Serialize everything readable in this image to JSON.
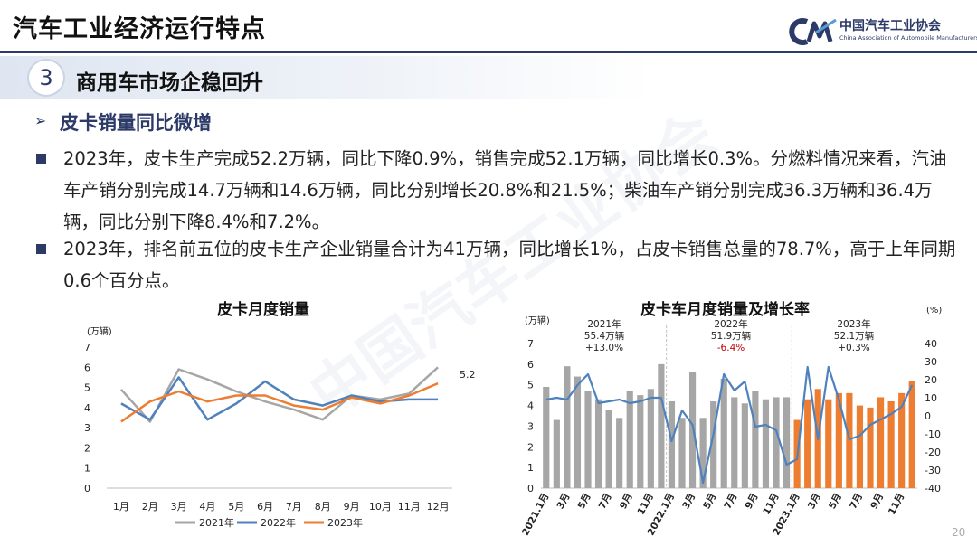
{
  "header": {
    "title": "汽车工业经济运行特点",
    "brand_name": "中国汽车工业协会",
    "brand_en": "China Association of Automobile Manufacturers",
    "watermark": "中国汽车工业协会"
  },
  "section": {
    "number": "3",
    "title": "商用车市场企稳回升"
  },
  "subsection": {
    "arrow": "➢",
    "title": "皮卡销量同比微增"
  },
  "paragraphs": [
    "2023年，皮卡生产完成52.2万辆，同比下降0.9%，销售完成52.1万辆，同比增长0.3%。分燃料情况来看，汽油车产销分别完成14.7万辆和14.6万辆，同比分别增长20.8%和21.5%；柴油车产销分别完成36.3万辆和36.4万辆，同比分别下降8.4%和7.2%。",
    "2023年，排名前五位的皮卡生产企业销量合计为41万辆，同比增长1%，占皮卡销售总量的78.7%，高于上年同期0.6个百分点。"
  ],
  "page_number": "20",
  "colors": {
    "navy": "#2b3a67",
    "gray": "#a6a6a6",
    "blue": "#4f81bd",
    "orange": "#ed7d31"
  },
  "chart_data": [
    {
      "type": "line",
      "title": "皮卡月度销量",
      "ylabel": "(万辆)",
      "ylim": [
        0,
        7
      ],
      "yticks": [
        "0",
        "1",
        "2",
        "3",
        "4",
        "5",
        "6",
        "7"
      ],
      "categories": [
        "1月",
        "2月",
        "3月",
        "4月",
        "5月",
        "6月",
        "7月",
        "8月",
        "9月",
        "10月",
        "11月",
        "12月"
      ],
      "series": [
        {
          "name": "2021年",
          "color": "#a6a6a6",
          "values": [
            4.9,
            3.3,
            5.9,
            5.4,
            4.8,
            4.3,
            3.9,
            3.4,
            4.6,
            4.4,
            4.7,
            6.0
          ]
        },
        {
          "name": "2022年",
          "color": "#4f81bd",
          "values": [
            4.2,
            3.4,
            5.5,
            3.4,
            4.2,
            5.3,
            4.4,
            4.1,
            4.6,
            4.3,
            4.4,
            4.4
          ]
        },
        {
          "name": "2023年",
          "color": "#ed7d31",
          "values": [
            3.3,
            4.3,
            4.8,
            4.3,
            4.6,
            4.6,
            4.1,
            3.9,
            4.5,
            4.2,
            4.6,
            5.2
          ]
        }
      ],
      "end_label": "5.2"
    },
    {
      "type": "bar",
      "title": "皮卡车月度销量及增长率",
      "ylabel_left": "(万辆)",
      "ylabel_right": "(%)",
      "ylim_left": [
        0,
        7
      ],
      "ylim_right": [
        -40,
        40
      ],
      "yticks_left": [
        "0",
        "1",
        "2",
        "3",
        "4",
        "5",
        "6",
        "7"
      ],
      "yticks_right": [
        "-40",
        "-30",
        "-20",
        "-10",
        "0",
        "10",
        "20",
        "30",
        "40"
      ],
      "x_labels": [
        "2021.1月",
        "3月",
        "5月",
        "7月",
        "9月",
        "11月",
        "2022.1月",
        "3月",
        "5月",
        "7月",
        "9月",
        "11月",
        "2023.1月",
        "3月",
        "5月",
        "7月",
        "9月",
        "11月"
      ],
      "bars_2021_2022": [
        4.9,
        3.3,
        5.9,
        5.4,
        4.7,
        4.3,
        3.8,
        3.4,
        4.7,
        4.5,
        4.8,
        6.0,
        4.2,
        3.4,
        5.6,
        3.4,
        4.2,
        5.3,
        4.4,
        4.1,
        4.7,
        4.3,
        4.4,
        4.4
      ],
      "bars_2023": [
        3.3,
        4.3,
        4.8,
        4.3,
        4.6,
        4.6,
        4.0,
        3.9,
        4.4,
        4.2,
        4.6,
        5.2
      ],
      "growth_rate": [
        9,
        10,
        9,
        17,
        23,
        7,
        8,
        9,
        7,
        8,
        10,
        10,
        -14,
        3,
        -5,
        -37,
        -10,
        23,
        14,
        19,
        -6,
        -5,
        -8,
        -27,
        -24,
        27,
        -13,
        27,
        9,
        -13,
        -11,
        -5,
        -2,
        1,
        5,
        17
      ],
      "annotations": [
        {
          "year": "2021年",
          "total": "55.4万辆",
          "rate": "+13.0%",
          "rate_color": "#222222"
        },
        {
          "year": "2022年",
          "total": "51.9万辆",
          "rate": "-6.4%",
          "rate_color": "#c00000"
        },
        {
          "year": "2023年",
          "total": "52.1万辆",
          "rate": "+0.3%",
          "rate_color": "#222222"
        }
      ]
    }
  ]
}
